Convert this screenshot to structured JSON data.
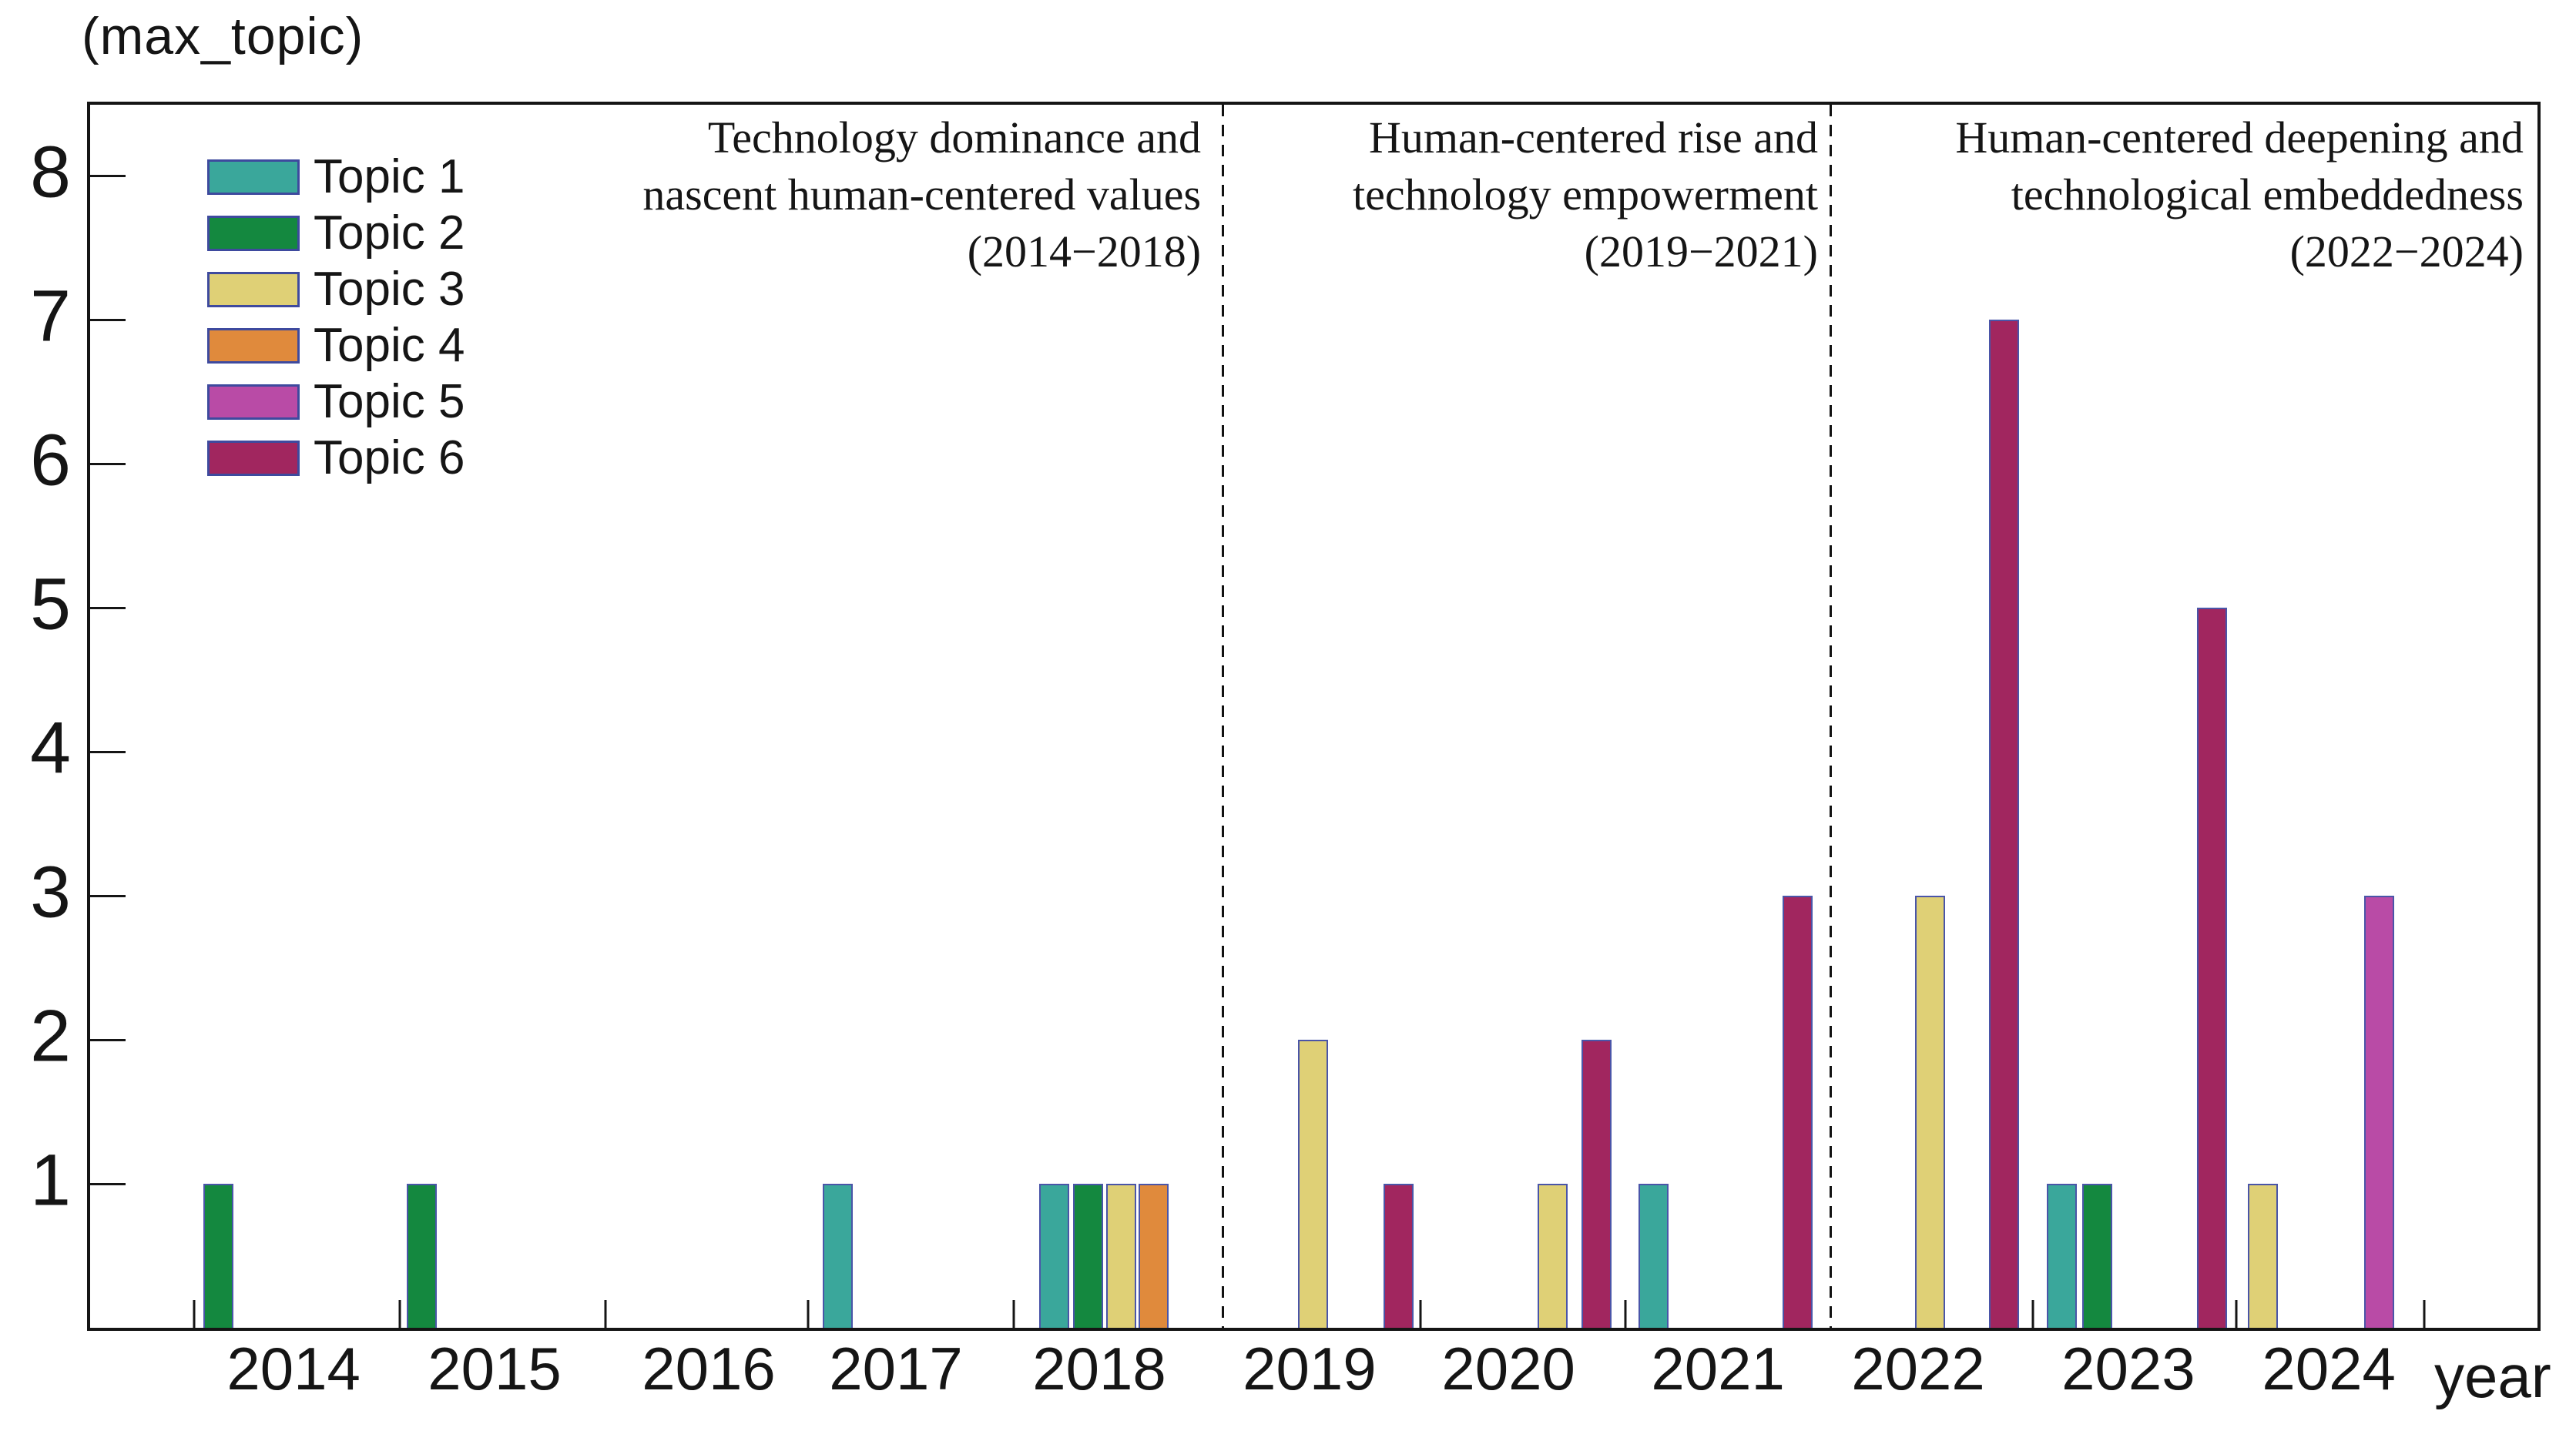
{
  "chart_data": {
    "type": "bar",
    "title": "(max_topic)",
    "ylabel_display": "(max_topic)",
    "xlabel": "year",
    "ylim": [
      0,
      8.49
    ],
    "yticks": [
      1,
      2,
      3,
      4,
      5,
      6,
      7,
      8
    ],
    "grid": false,
    "legend_position": "upper-left-inside",
    "axis_color": "#151515",
    "bar_edge_color": "#4A55A8",
    "topics": [
      {
        "label": "Topic 1",
        "color": "#3AA79B"
      },
      {
        "label": "Topic 2",
        "color": "#14883F"
      },
      {
        "label": "Topic 3",
        "color": "#DFD076"
      },
      {
        "label": "Topic 4",
        "color": "#E08A3C"
      },
      {
        "label": "Topic 5",
        "color": "#B94BA6"
      },
      {
        "label": "Topic 6",
        "color": "#A1265F"
      }
    ],
    "years": [
      {
        "label": "2014",
        "x": 0.0844
      },
      {
        "label": "2015",
        "x": 0.1665
      },
      {
        "label": "2016",
        "x": 0.254
      },
      {
        "label": "2017",
        "x": 0.3305
      },
      {
        "label": "2018",
        "x": 0.4136
      },
      {
        "label": "2019",
        "x": 0.4995
      },
      {
        "label": "2020",
        "x": 0.5808
      },
      {
        "label": "2021",
        "x": 0.6664
      },
      {
        "label": "2022",
        "x": 0.7482
      },
      {
        "label": "2023",
        "x": 0.8341
      },
      {
        "label": "2024",
        "x": 0.916
      }
    ],
    "bars": [
      {
        "year": "2014",
        "topic": 2,
        "value": 1,
        "x": 0.0524
      },
      {
        "year": "2015",
        "topic": 2,
        "value": 1,
        "x": 0.1352
      },
      {
        "year": "2017",
        "topic": 1,
        "value": 1,
        "x": 0.3052
      },
      {
        "year": "2018",
        "topic": 1,
        "value": 1,
        "x": 0.3939
      },
      {
        "year": "2018",
        "topic": 2,
        "value": 1,
        "x": 0.4075
      },
      {
        "year": "2018",
        "topic": 3,
        "value": 1,
        "x": 0.4211
      },
      {
        "year": "2018",
        "topic": 4,
        "value": 1,
        "x": 0.4344
      },
      {
        "year": "2019",
        "topic": 3,
        "value": 2,
        "x": 0.4995
      },
      {
        "year": "2019",
        "topic": 6,
        "value": 1,
        "x": 0.5346
      },
      {
        "year": "2020",
        "topic": 3,
        "value": 1,
        "x": 0.5973
      },
      {
        "year": "2020",
        "topic": 6,
        "value": 2,
        "x": 0.6155
      },
      {
        "year": "2021",
        "topic": 1,
        "value": 1,
        "x": 0.6387
      },
      {
        "year": "2021",
        "topic": 6,
        "value": 3,
        "x": 0.6974
      },
      {
        "year": "2022",
        "topic": 3,
        "value": 3,
        "x": 0.7516
      },
      {
        "year": "2022",
        "topic": 6,
        "value": 7,
        "x": 0.7819
      },
      {
        "year": "2023",
        "topic": 1,
        "value": 1,
        "x": 0.8054
      },
      {
        "year": "2023",
        "topic": 2,
        "value": 1,
        "x": 0.82
      },
      {
        "year": "2023",
        "topic": 6,
        "value": 5,
        "x": 0.8667
      },
      {
        "year": "2024",
        "topic": 3,
        "value": 1,
        "x": 0.8875
      },
      {
        "year": "2024",
        "topic": 5,
        "value": 3,
        "x": 0.9352
      }
    ],
    "x_boundary_ticks": [
      0.0425,
      0.1265,
      0.2106,
      0.2933,
      0.3774,
      0.5436,
      0.6273,
      0.7938,
      0.8769,
      0.9537
    ],
    "dividers": [
      0.4627,
      0.711
    ],
    "periods": [
      {
        "lines": [
          "Technology dominance and",
          "nascent human-centered values",
          "(2014−2018)"
        ],
        "right": 0.4539
      },
      {
        "lines": [
          "Human-centered rise and",
          "technology empowerment",
          "(2019−2021)"
        ],
        "right": 0.706
      },
      {
        "lines": [
          "Human-centered deepening and",
          "technological embeddedness",
          "(2022−2024)"
        ],
        "right": 0.9943
      }
    ]
  }
}
